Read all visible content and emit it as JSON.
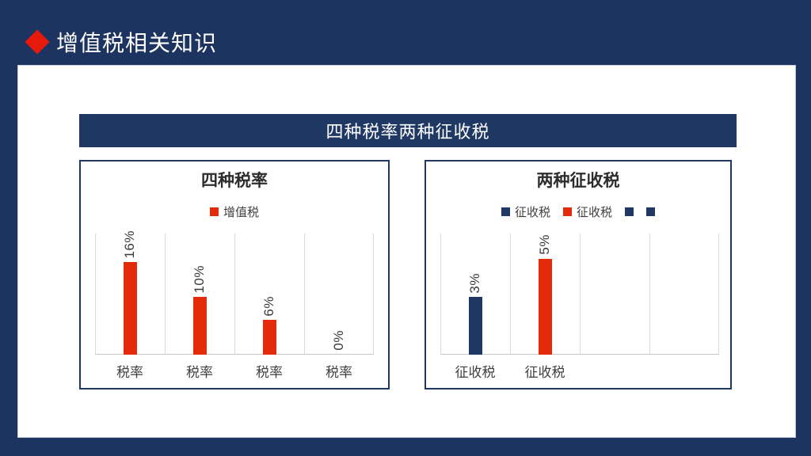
{
  "header": {
    "title": "增值税相关知识"
  },
  "banner": {
    "title": "四种税率两种征收税"
  },
  "colors": {
    "background_navy": "#1d3360",
    "banner_navy": "#1f3864",
    "accent_red": "#e32b0a",
    "bar_navy": "#1f3864",
    "gridline_gray": "#d9d9d9",
    "text_dark": "#3f3f3f"
  },
  "chart_data": [
    {
      "type": "bar",
      "title": "四种税率",
      "legend": [
        {
          "label": "增值税",
          "color": "#e32b0a"
        }
      ],
      "categories": [
        "税率",
        "税率",
        "税率",
        "税率"
      ],
      "points": [
        {
          "category": "税率",
          "value": 16,
          "label": "16%",
          "color": "#e32b0a"
        },
        {
          "category": "税率",
          "value": 10,
          "label": "10%",
          "color": "#e32b0a"
        },
        {
          "category": "税率",
          "value": 6,
          "label": "6%",
          "color": "#e32b0a"
        },
        {
          "category": "税率",
          "value": 0,
          "label": "0%",
          "color": "#e32b0a"
        }
      ],
      "ylim": [
        0,
        21
      ],
      "xlabel": "",
      "ylabel": "",
      "grid": "vertical",
      "legend_position": "top",
      "data_label_rotation": -90
    },
    {
      "type": "bar",
      "title": "两种征收税",
      "legend": [
        {
          "label": "征收税",
          "color": "#1f3864"
        },
        {
          "label": "征收税",
          "color": "#e32b0a"
        },
        {
          "label": "",
          "color": "#1f3864"
        },
        {
          "label": "",
          "color": "#1f3864"
        }
      ],
      "categories": [
        "征收税",
        "征收税",
        "",
        ""
      ],
      "points": [
        {
          "category": "征收税",
          "value": 3,
          "label": "3%",
          "color": "#1f3864"
        },
        {
          "category": "征收税",
          "value": 5,
          "label": "5%",
          "color": "#e32b0a"
        },
        {
          "category": "",
          "value": null,
          "label": "",
          "color": null
        },
        {
          "category": "",
          "value": null,
          "label": "",
          "color": null
        }
      ],
      "ylim": [
        0,
        6.3
      ],
      "xlabel": "",
      "ylabel": "",
      "grid": "vertical",
      "legend_position": "top",
      "data_label_rotation": -90
    }
  ]
}
